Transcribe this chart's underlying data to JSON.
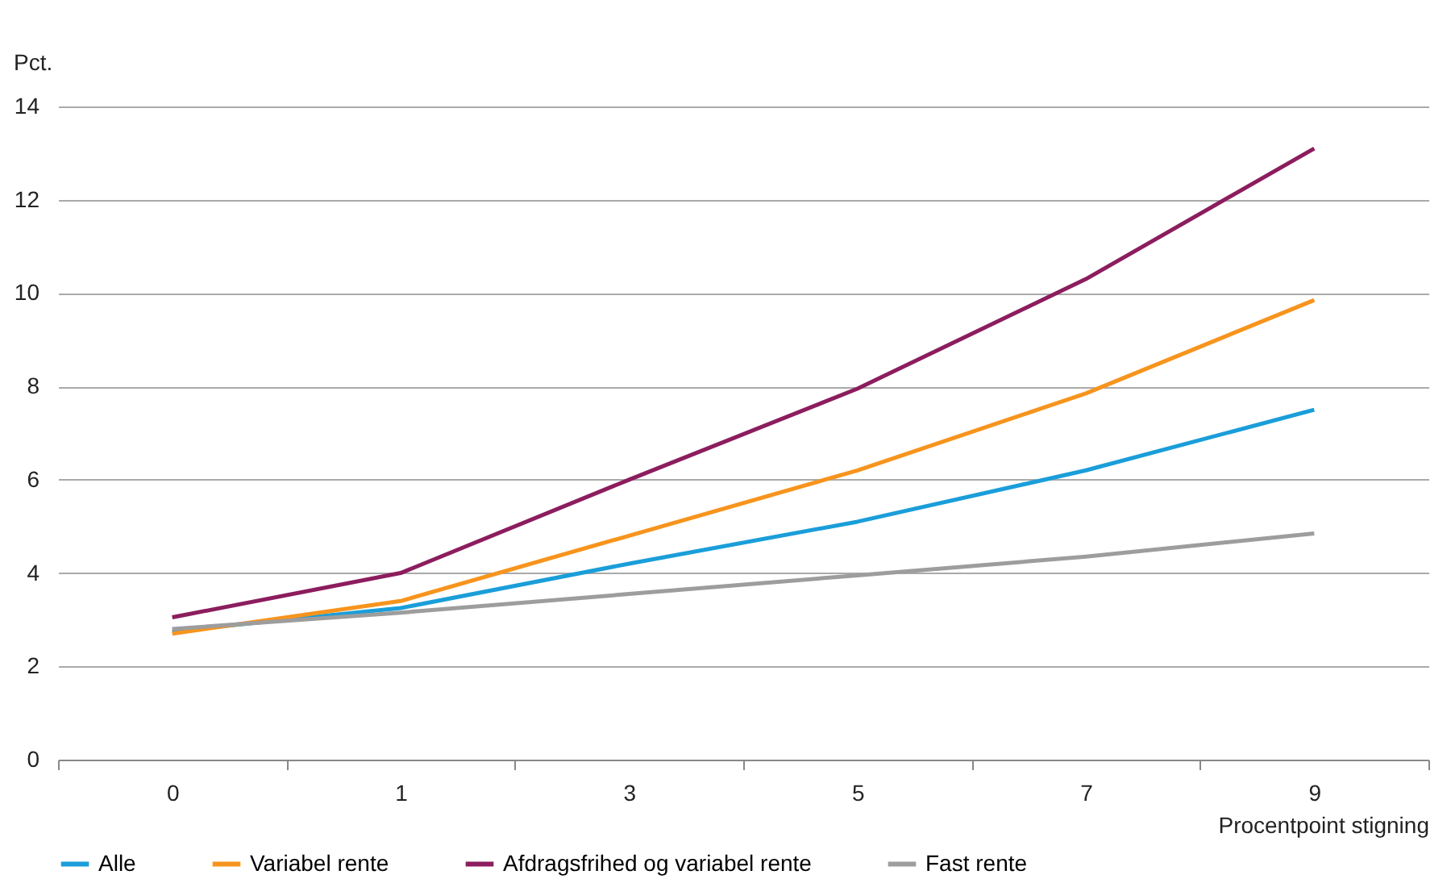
{
  "chart_data": {
    "type": "line",
    "ylabel": "Pct.",
    "xlabel": "Procentpoint stigning",
    "categories": [
      "0",
      "1",
      "3",
      "5",
      "7",
      "9"
    ],
    "ylim": [
      0,
      14
    ],
    "yticks": [
      0,
      2,
      4,
      6,
      8,
      10,
      12,
      14
    ],
    "grid": "y",
    "legend": "bottom",
    "marker": "none",
    "line_style": "solid",
    "series": [
      {
        "name": "Alle",
        "color": "#1a9ed9",
        "values": [
          2.75,
          3.25,
          4.2,
          5.1,
          6.2,
          7.5
        ]
      },
      {
        "name": "Variabel rente",
        "color": "#f7941d",
        "values": [
          2.7,
          3.4,
          4.8,
          6.2,
          7.85,
          9.85
        ]
      },
      {
        "name": "Afdragsfrihed og variabel rente",
        "color": "#8c1d5e",
        "values": [
          3.05,
          4.0,
          6.0,
          7.95,
          10.3,
          13.1
        ]
      },
      {
        "name": "Fast rente",
        "color": "#9d9d9d",
        "values": [
          2.8,
          3.15,
          3.55,
          3.95,
          4.35,
          4.85
        ]
      }
    ]
  }
}
